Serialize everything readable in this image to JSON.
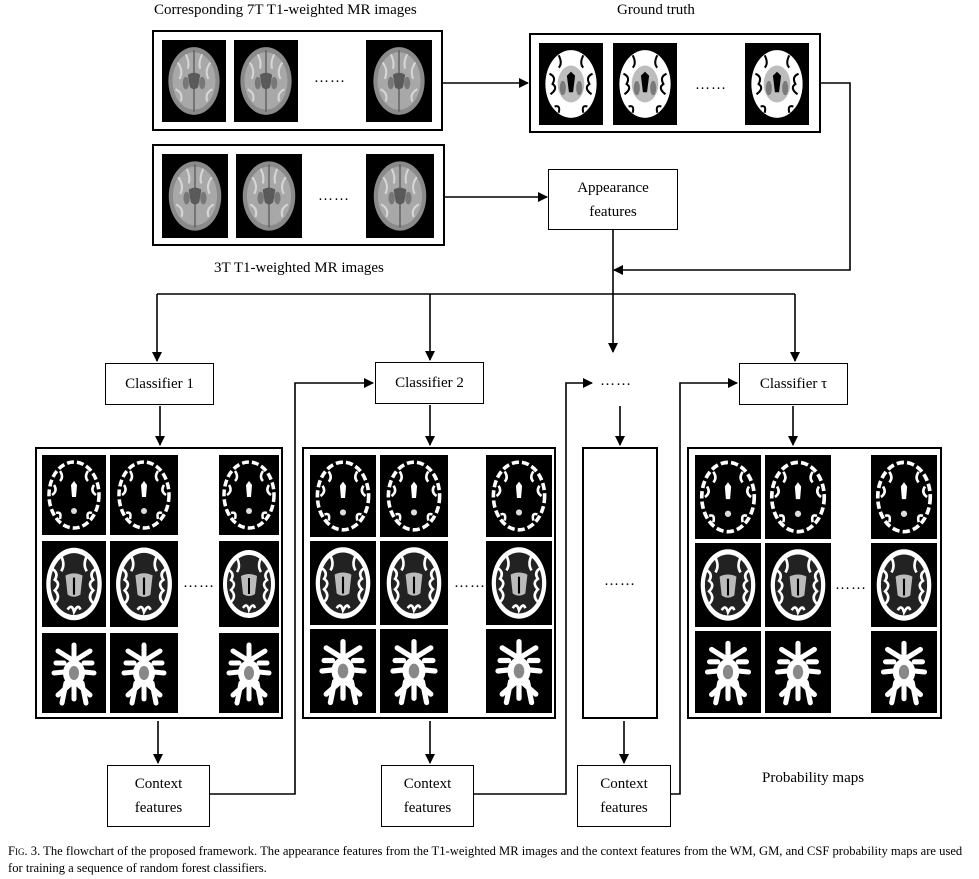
{
  "labels": {
    "mr7t": "Corresponding 7T T1-weighted MR images",
    "ground_truth": "Ground truth",
    "mr3t": "3T T1-weighted MR images",
    "probability_maps": "Probability maps"
  },
  "boxes": {
    "appearance_line1": "Appearance",
    "appearance_line2": "features",
    "classifier1": "Classifier 1",
    "classifier2": "Classifier 2",
    "classifier_tau": "Classifier τ",
    "context_line1": "Context",
    "context_line2": "features"
  },
  "ellipsis": "……",
  "caption": {
    "fig": "Fig. 3.",
    "text": "The flowchart of the proposed framework. The appearance features from the T1-weighted MR images and the context features from the WM, GM, and CSF probability maps are used for training a sequence of random forest classifiers."
  },
  "colors": {
    "line": "#000000",
    "background": "#ffffff"
  }
}
